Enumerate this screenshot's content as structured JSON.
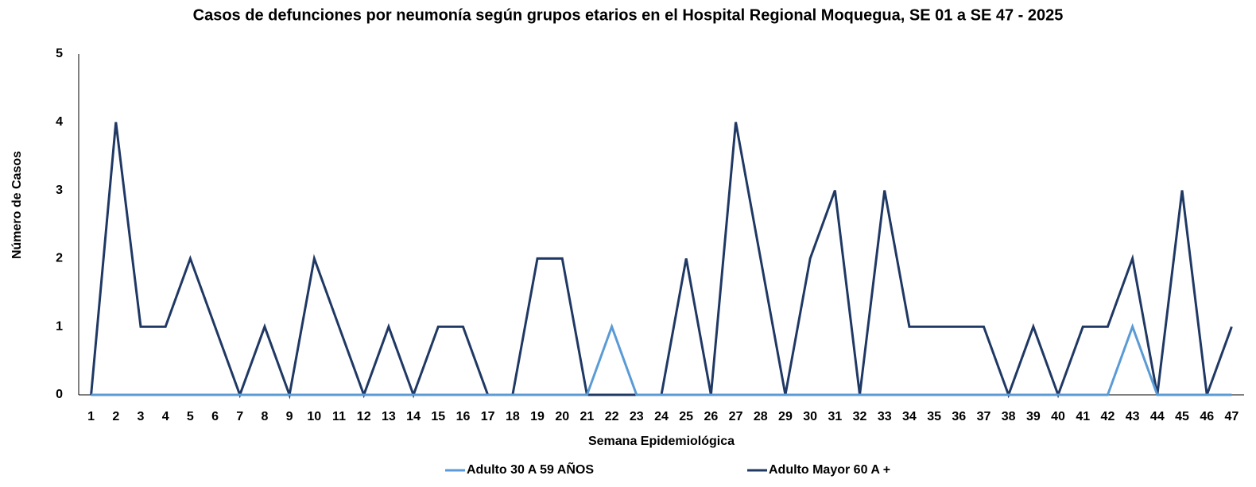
{
  "chart_data": {
    "type": "line",
    "title": "Casos de defunciones por neumonía según grupos etarios en el Hospital Regional Moquegua, SE 01 a SE 47 - 2025",
    "x_label": "Semana Epidemiológica",
    "y_label": "Número de Casos",
    "categories": [
      "1",
      "2",
      "3",
      "4",
      "5",
      "6",
      "7",
      "8",
      "9",
      "10",
      "11",
      "12",
      "13",
      "14",
      "15",
      "16",
      "17",
      "18",
      "19",
      "20",
      "21",
      "22",
      "23",
      "24",
      "25",
      "26",
      "27",
      "28",
      "29",
      "30",
      "31",
      "32",
      "33",
      "34",
      "35",
      "36",
      "37",
      "38",
      "39",
      "40",
      "41",
      "42",
      "43",
      "44",
      "45",
      "46",
      "47"
    ],
    "series": [
      {
        "name": "Adulto Mayor 60 A +",
        "color": "#1f3864",
        "values": [
          0,
          4,
          1,
          1,
          2,
          1,
          0,
          1,
          0,
          2,
          1,
          0,
          1,
          0,
          1,
          1,
          0,
          0,
          2,
          2,
          0,
          0,
          0,
          0,
          2,
          0,
          4,
          2,
          0,
          2,
          3,
          0,
          3,
          1,
          1,
          1,
          1,
          0,
          1,
          0,
          1,
          1,
          2,
          0,
          3,
          0,
          1
        ]
      },
      {
        "name": "Adulto 30 A 59 AÑOS",
        "color": "#5b9bd5",
        "values": [
          0,
          0,
          0,
          0,
          0,
          0,
          0,
          0,
          0,
          0,
          0,
          0,
          0,
          0,
          0,
          0,
          0,
          0,
          0,
          0,
          0,
          1,
          0,
          0,
          0,
          0,
          0,
          0,
          0,
          0,
          0,
          0,
          0,
          0,
          0,
          0,
          0,
          0,
          0,
          0,
          0,
          0,
          1,
          0,
          0,
          0,
          0
        ]
      }
    ],
    "ylim": [
      0,
      5
    ],
    "yticks": [
      0,
      1,
      2,
      3,
      4,
      5
    ],
    "grid": false
  }
}
